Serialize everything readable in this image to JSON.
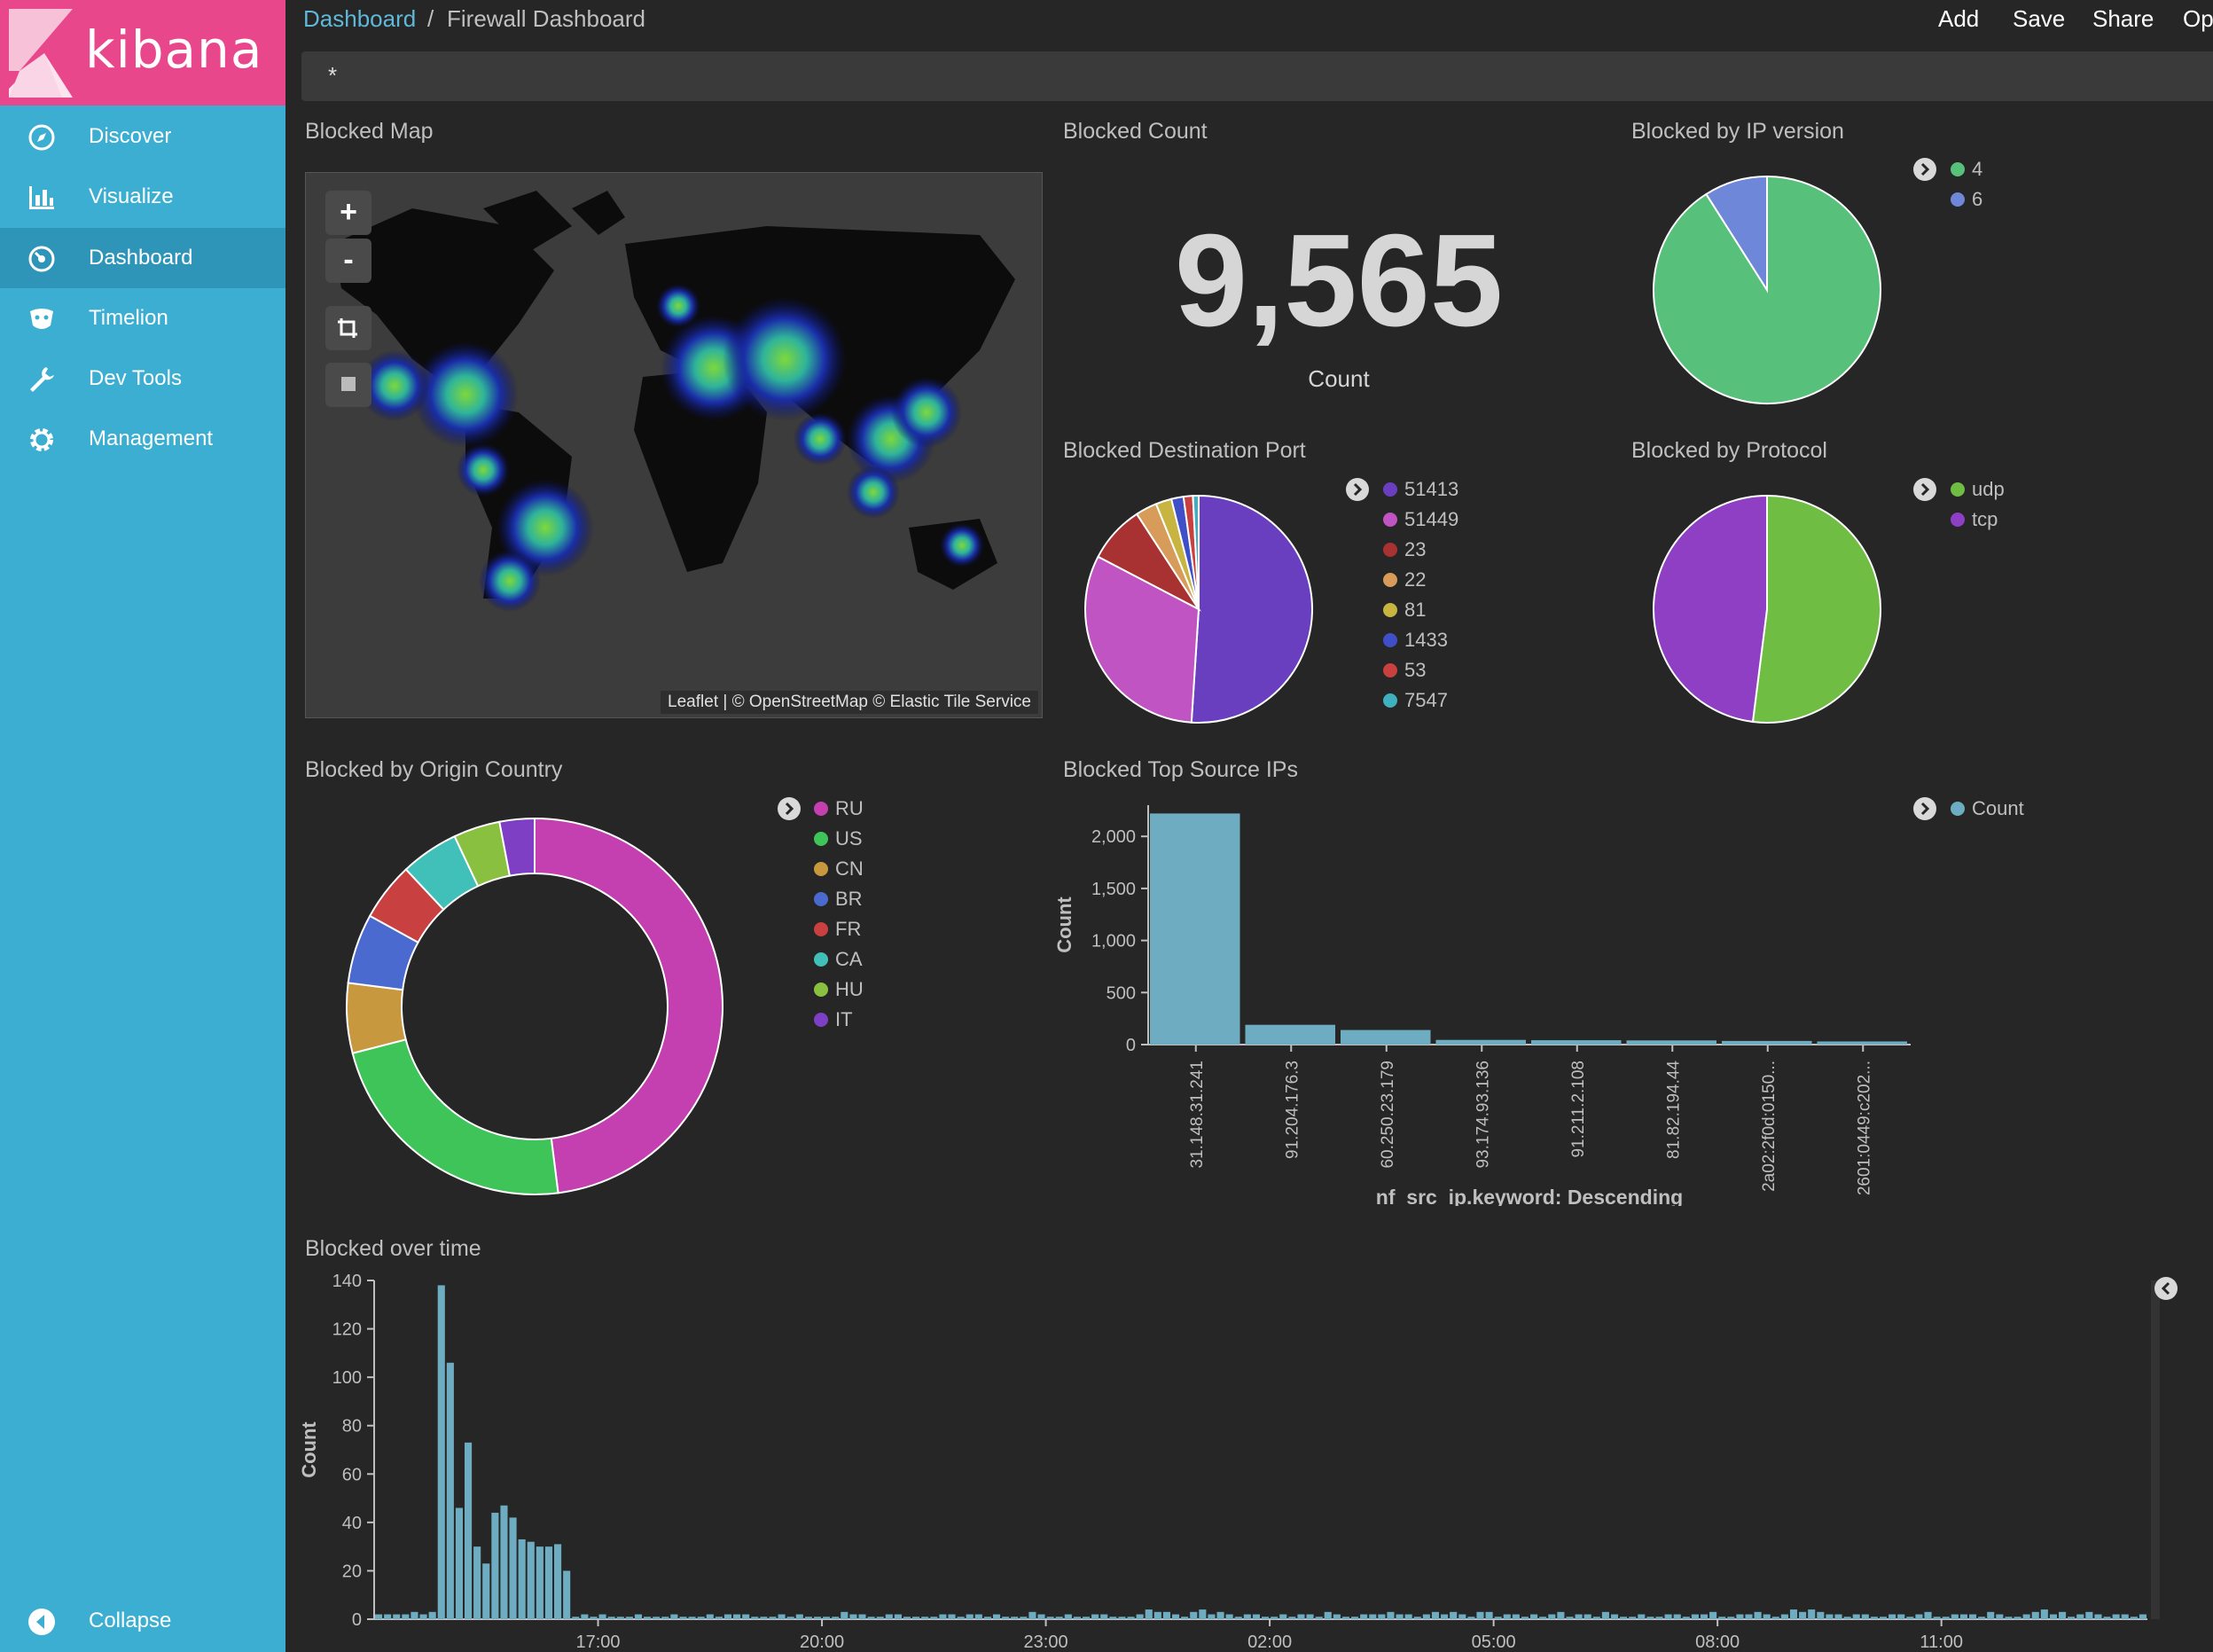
{
  "app": {
    "logo_text": "kibana"
  },
  "sidebar": {
    "items": [
      {
        "label": "Discover",
        "icon": "compass-icon"
      },
      {
        "label": "Visualize",
        "icon": "bar-chart-icon"
      },
      {
        "label": "Dashboard",
        "icon": "dashboard-icon",
        "active": true
      },
      {
        "label": "Timelion",
        "icon": "timelion-icon"
      },
      {
        "label": "Dev Tools",
        "icon": "wrench-icon"
      },
      {
        "label": "Management",
        "icon": "gear-icon"
      }
    ],
    "collapse_label": "Collapse"
  },
  "breadcrumb": {
    "root": "Dashboard",
    "separator": "/",
    "current": "Firewall Dashboard"
  },
  "toolbar": {
    "add": "Add",
    "save": "Save",
    "share": "Share",
    "options_partial": "Op"
  },
  "query": {
    "value": "*"
  },
  "colors": {
    "sidebar": "#3caed2",
    "logo_bg": "#e8488b",
    "background": "#262626",
    "bar": "#6eadc1"
  },
  "panels": {
    "map": {
      "title": "Blocked Map",
      "attribution": "Leaflet | © OpenStreetMap © Elastic Tile Service",
      "zoom_in": "+",
      "zoom_out": "-"
    },
    "count": {
      "title": "Blocked Count",
      "value": "9,565",
      "label": "Count"
    },
    "ip_version": {
      "title": "Blocked by IP version"
    },
    "dest_port": {
      "title": "Blocked Destination Port"
    },
    "protocol": {
      "title": "Blocked by Protocol"
    },
    "origin_country": {
      "title": "Blocked by Origin Country"
    },
    "top_src": {
      "title": "Blocked Top Source IPs"
    },
    "over_time": {
      "title": "Blocked over time"
    }
  },
  "chart_data": [
    {
      "type": "pie",
      "name": "ip_version",
      "labels": [
        "4",
        "6"
      ],
      "values": [
        91,
        9
      ],
      "colors": [
        "#57c17b",
        "#6f87d8"
      ]
    },
    {
      "type": "pie",
      "name": "dest_port",
      "labels": [
        "51413",
        "51449",
        "23",
        "22",
        "81",
        "1433",
        "53",
        "7547"
      ],
      "values": [
        50,
        31,
        8,
        3,
        2.2,
        1.7,
        1.3,
        0.8
      ],
      "colors": [
        "#6a3fbf",
        "#c054c2",
        "#a83232",
        "#d89c5a",
        "#c8b440",
        "#3f4fc8",
        "#c84040",
        "#3fb0c0"
      ]
    },
    {
      "type": "pie",
      "name": "protocol",
      "labels": [
        "udp",
        "tcp"
      ],
      "values": [
        52,
        48
      ],
      "colors": [
        "#6fbd43",
        "#8e3fc4"
      ]
    },
    {
      "type": "pie",
      "name": "origin_country",
      "donut": true,
      "labels": [
        "RU",
        "US",
        "CN",
        "BR",
        "FR",
        "CA",
        "HU",
        "IT"
      ],
      "values": [
        48,
        23,
        6,
        6,
        5,
        5,
        4,
        3
      ],
      "colors": [
        "#c43fb0",
        "#3fc45a",
        "#c8983f",
        "#4a6ad0",
        "#c84040",
        "#40c0b8",
        "#8ac040",
        "#7f3fc4"
      ]
    },
    {
      "type": "bar",
      "name": "top_src",
      "categories": [
        "31.148.31.241",
        "91.204.176.3",
        "60.250.23.179",
        "93.174.93.136",
        "91.211.2.108",
        "81.82.194.44",
        "2a02:2f0d:0150...",
        "2601:0449:c202..."
      ],
      "series": [
        {
          "name": "Count",
          "values": [
            2220,
            190,
            140,
            45,
            42,
            40,
            35,
            30
          ]
        }
      ],
      "ylabel": "Count",
      "xlabel": "nf_src_ip.keyword: Descending",
      "ylim": [
        0,
        2300
      ],
      "yticks": [
        0,
        500,
        1000,
        1500,
        2000
      ],
      "ytick_labels": [
        "0",
        "500",
        "1,000",
        "1,500",
        "2,000"
      ]
    },
    {
      "type": "bar",
      "name": "over_time",
      "ylabel": "Count",
      "ylim": [
        0,
        140
      ],
      "yticks": [
        0,
        20,
        40,
        60,
        80,
        100,
        120,
        140
      ],
      "xtick_labels": [
        "17:00",
        "20:00",
        "23:00",
        "02:00",
        "05:00",
        "08:00",
        "11:00"
      ],
      "xtick_bins": [
        25,
        50,
        75,
        100,
        125,
        150,
        175
      ],
      "values": [
        2,
        2,
        2,
        2,
        3,
        2,
        3,
        138,
        106,
        46,
        73,
        30,
        23,
        44,
        47,
        42,
        33,
        32,
        30,
        30,
        31,
        20,
        1,
        2,
        1,
        2,
        1,
        1,
        1,
        2,
        1,
        1,
        1,
        2,
        1,
        1,
        1,
        2,
        1,
        2,
        2,
        2,
        1,
        1,
        1,
        2,
        1,
        2,
        1,
        1,
        1,
        1,
        3,
        2,
        2,
        1,
        1,
        2,
        2,
        1,
        1,
        1,
        1,
        2,
        2,
        1,
        2,
        2,
        1,
        2,
        1,
        1,
        1,
        3,
        2,
        1,
        1,
        2,
        1,
        1,
        2,
        2,
        1,
        1,
        1,
        2,
        4,
        3,
        3,
        2,
        1,
        3,
        4,
        2,
        3,
        2,
        1,
        2,
        2,
        1,
        1,
        2,
        1,
        2,
        2,
        1,
        3,
        2,
        1,
        1,
        2,
        2,
        2,
        3,
        2,
        2,
        1,
        2,
        3,
        2,
        3,
        2,
        1,
        3,
        3,
        1,
        2,
        2,
        1,
        2,
        1,
        2,
        3,
        1,
        2,
        2,
        1,
        3,
        2,
        1,
        1,
        2,
        1,
        1,
        2,
        2,
        1,
        2,
        2,
        3,
        1,
        1,
        2,
        2,
        3,
        2,
        1,
        2,
        4,
        3,
        4,
        3,
        2,
        2,
        1,
        2,
        2,
        1,
        1,
        2,
        2,
        1,
        2,
        3,
        1,
        1,
        2,
        2,
        2,
        1,
        3,
        2,
        1,
        1,
        2,
        3,
        4,
        2,
        3,
        1,
        2,
        3,
        2,
        1,
        2,
        2,
        1,
        2
      ],
      "legend_toggle_collapsed": true
    }
  ]
}
